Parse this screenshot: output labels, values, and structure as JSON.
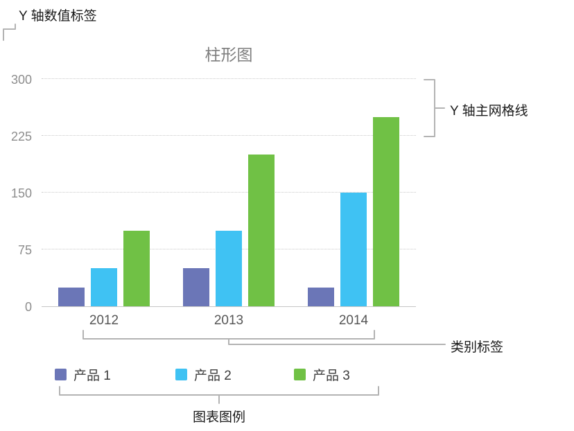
{
  "annotations": {
    "y_value_labels": "Y 轴数值标签",
    "y_major_gridlines": "Y 轴主网格线",
    "category_labels": "类别标签",
    "chart_legend": "图表图例"
  },
  "chart_data": {
    "type": "bar",
    "title": "柱形图",
    "categories": [
      "2012",
      "2013",
      "2014"
    ],
    "series": [
      {
        "name": "产品 1",
        "color": "#6b76b7",
        "values": [
          25,
          50,
          25
        ]
      },
      {
        "name": "产品 2",
        "color": "#3fc2f3",
        "values": [
          50,
          100,
          150
        ]
      },
      {
        "name": "产品 3",
        "color": "#70c145",
        "values": [
          100,
          200,
          250
        ]
      }
    ],
    "y_ticks": [
      0,
      75,
      150,
      225,
      300
    ],
    "ylim": [
      0,
      300
    ],
    "grid": "dotted-major-y",
    "legend_position": "bottom",
    "colors": {
      "callout_line": "#b3b3b3",
      "axis_line": "#c5c5c5",
      "gridline": "#c9c9c9",
      "annotation_text": "#1a1a1a"
    }
  }
}
